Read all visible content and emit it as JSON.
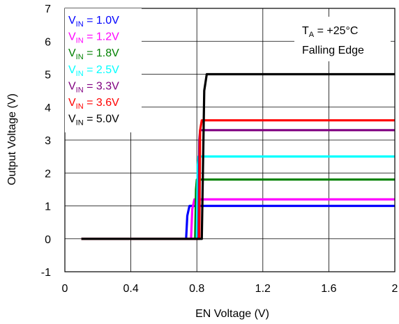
{
  "chart_data": {
    "type": "line",
    "xlabel": "EN Voltage (V)",
    "ylabel": "Output Voltage (V)",
    "xlim": [
      0,
      2
    ],
    "ylim": [
      -1,
      7
    ],
    "xticks": [
      "0",
      "0.4",
      "0.8",
      "1.2",
      "1.6",
      "2"
    ],
    "xtick_values": [
      0,
      0.4,
      0.8,
      1.2,
      1.6,
      2
    ],
    "yticks": [
      "-1",
      "0",
      "1",
      "2",
      "3",
      "4",
      "5",
      "6",
      "7"
    ],
    "ytick_values": [
      -1,
      0,
      1,
      2,
      3,
      4,
      5,
      6,
      7
    ],
    "grid": true,
    "legend_position": "top-left",
    "annotation": {
      "line1_main": "T",
      "line1_sub": "A",
      "line1_rest": " = +25°C",
      "line2": "Falling Edge"
    },
    "series": [
      {
        "name_main": "V",
        "name_sub": "IN",
        "name_rest": " = 1.0V",
        "color": "#0000ff",
        "x": [
          0.1,
          0.735,
          0.742,
          0.755,
          2.0
        ],
        "y": [
          0,
          0,
          0.7,
          1.0,
          1.0
        ]
      },
      {
        "name_main": "V",
        "name_sub": "IN",
        "name_rest": " = 1.2V",
        "color": "#ff00ff",
        "x": [
          0.1,
          0.765,
          0.772,
          0.785,
          2.0
        ],
        "y": [
          0,
          0,
          0.9,
          1.2,
          1.2
        ]
      },
      {
        "name_main": "V",
        "name_sub": "IN",
        "name_rest": " = 1.8V",
        "color": "#008000",
        "x": [
          0.1,
          0.79,
          0.795,
          0.8,
          2.0
        ],
        "y": [
          0,
          0,
          1.5,
          1.8,
          1.8
        ]
      },
      {
        "name_main": "V",
        "name_sub": "IN",
        "name_rest": " = 2.5V",
        "color": "#00ffff",
        "x": [
          0.1,
          0.8,
          0.805,
          0.81,
          2.0
        ],
        "y": [
          0,
          0,
          2.2,
          2.5,
          2.5
        ]
      },
      {
        "name_main": "V",
        "name_sub": "IN",
        "name_rest": " = 3.3V",
        "color": "#800080",
        "x": [
          0.1,
          0.81,
          0.815,
          0.82,
          2.0
        ],
        "y": [
          0,
          0,
          3.0,
          3.3,
          3.3
        ]
      },
      {
        "name_main": "V",
        "name_sub": "IN",
        "name_rest": " = 3.6V",
        "color": "#ff0000",
        "x": [
          0.1,
          0.815,
          0.82,
          0.83,
          2.0
        ],
        "y": [
          0,
          0,
          3.3,
          3.6,
          3.6
        ]
      },
      {
        "name_main": "V",
        "name_sub": "IN",
        "name_rest": " = 5.0V",
        "color": "#000000",
        "x": [
          0.1,
          0.83,
          0.845,
          0.86,
          2.0
        ],
        "y": [
          0,
          0,
          4.5,
          5.0,
          5.0
        ]
      }
    ]
  }
}
